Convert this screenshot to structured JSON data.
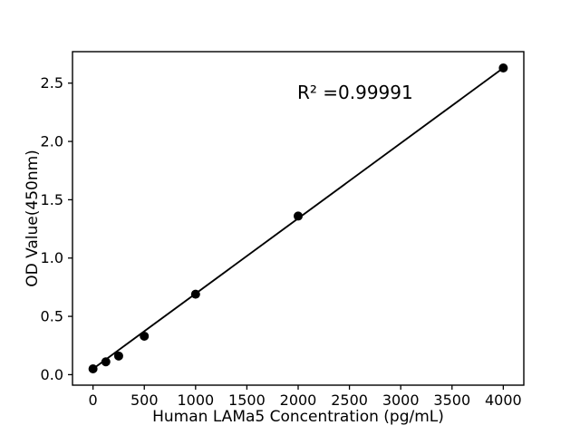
{
  "chart_data": {
    "type": "scatter",
    "title": "",
    "xlabel": "Human LAMa5 Concentration (pg/mL)",
    "ylabel": "OD Value(450nm)",
    "annotation": "R² =0.99991",
    "x": [
      0,
      125,
      250,
      500,
      1000,
      2000,
      4000
    ],
    "y": [
      0.05,
      0.11,
      0.16,
      0.33,
      0.69,
      1.36,
      2.63
    ],
    "fit_line": {
      "x_start": 0,
      "y_start": 0.05,
      "x_end": 4000,
      "y_end": 2.63
    },
    "xlim": [
      -200,
      4200
    ],
    "ylim": [
      -0.09,
      2.77
    ],
    "x_ticks": {
      "values": [
        0,
        500,
        1000,
        1500,
        2000,
        2500,
        3000,
        3500,
        4000
      ],
      "labels": [
        "0",
        "500",
        "1000",
        "1500",
        "2000",
        "2500",
        "3000",
        "3500",
        "4000"
      ]
    },
    "y_ticks": {
      "values": [
        0.0,
        0.5,
        1.0,
        1.5,
        2.0,
        2.5
      ],
      "labels": [
        "0.0",
        "0.5",
        "1.0",
        "1.5",
        "2.0",
        "2.5"
      ]
    },
    "grid": false,
    "legend": null,
    "marker_color": "#000000",
    "line_color": "#000000",
    "axis_color": "#000000",
    "background": "#ffffff"
  }
}
